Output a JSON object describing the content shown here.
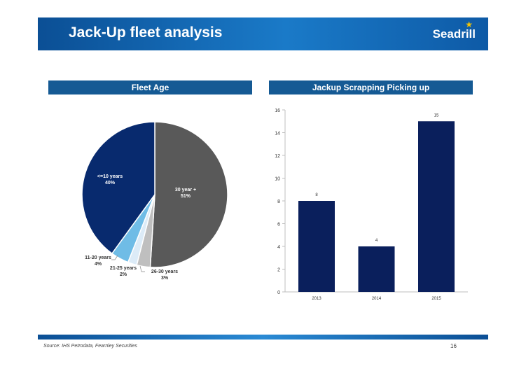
{
  "header": {
    "title": "Jack-Up fleet analysis",
    "logo": "Seadrill"
  },
  "footer": {
    "source": "Source: IHS Petrodata, Fearnley Securities",
    "page": "16"
  },
  "chart_data": [
    {
      "type": "pie",
      "title": "Fleet Age",
      "slices": [
        {
          "label": "30 year +",
          "value": 51,
          "value_label": "51%",
          "color": "#595959"
        },
        {
          "label": "26-30 years",
          "value": 3,
          "value_label": "3%",
          "color": "#bfbfbf"
        },
        {
          "label": "21-25 years",
          "value": 2,
          "value_label": "2%",
          "color": "#dcebf7"
        },
        {
          "label": "11-20 years",
          "value": 4,
          "value_label": "4%",
          "color": "#6fbce6"
        },
        {
          "label": "<=10 years",
          "value": 40,
          "value_label": "40%",
          "color": "#082a6e"
        }
      ]
    },
    {
      "type": "bar",
      "title": "Jackup Scrapping Picking up",
      "categories": [
        "2013",
        "2014",
        "2015"
      ],
      "values": [
        8,
        4,
        15
      ],
      "ylim": [
        0,
        16
      ],
      "yticks": [
        0,
        2,
        4,
        6,
        8,
        10,
        12,
        14,
        16
      ],
      "color": "#0a1f5c",
      "grid": false
    }
  ]
}
